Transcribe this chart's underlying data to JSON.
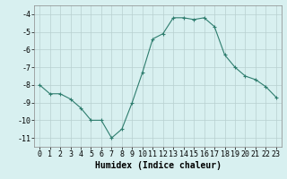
{
  "x": [
    0,
    1,
    2,
    3,
    4,
    5,
    6,
    7,
    8,
    9,
    10,
    11,
    12,
    13,
    14,
    15,
    16,
    17,
    18,
    19,
    20,
    21,
    22,
    23
  ],
  "y": [
    -8,
    -8.5,
    -8.5,
    -8.8,
    -9.3,
    -10,
    -10,
    -11,
    -10.5,
    -9,
    -7.3,
    -5.4,
    -5.1,
    -4.2,
    -4.2,
    -4.3,
    -4.2,
    -4.7,
    -6.3,
    -7.0,
    -7.5,
    -7.7,
    -8.1,
    -8.7
  ],
  "xlabel": "Humidex (Indice chaleur)",
  "xlim": [
    -0.5,
    23.5
  ],
  "ylim": [
    -11.5,
    -3.5
  ],
  "yticks": [
    -11,
    -10,
    -9,
    -8,
    -7,
    -6,
    -5,
    -4
  ],
  "xticks": [
    0,
    1,
    2,
    3,
    4,
    5,
    6,
    7,
    8,
    9,
    10,
    11,
    12,
    13,
    14,
    15,
    16,
    17,
    18,
    19,
    20,
    21,
    22,
    23
  ],
  "line_color": "#2e7d6e",
  "marker": "+",
  "bg_color": "#d8f0f0",
  "grid_color": "#b8d0d0",
  "label_fontsize": 7,
  "tick_fontsize": 6
}
